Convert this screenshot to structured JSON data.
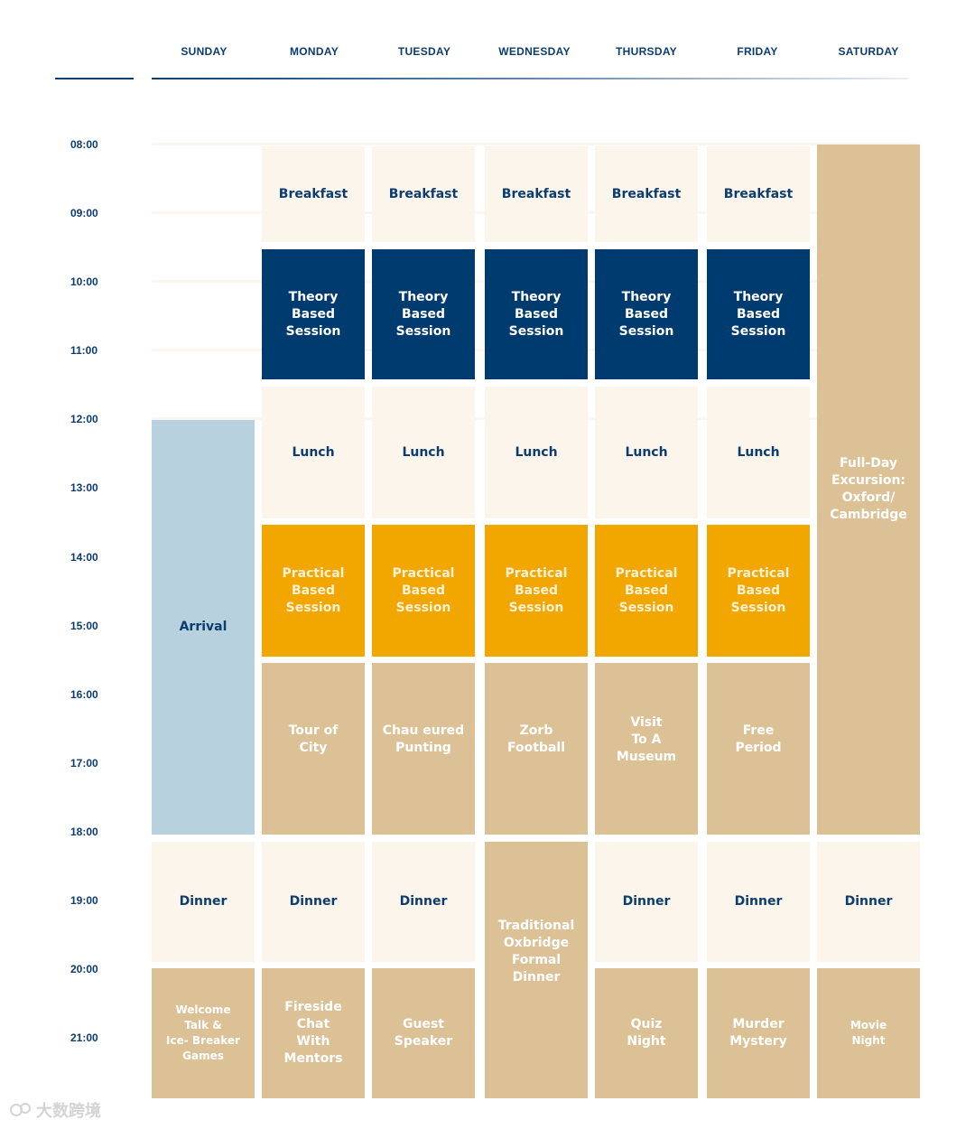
{
  "days": [
    "SUNDAY",
    "MONDAY",
    "TUESDAY",
    "WEDNESDAY",
    "THURSDAY",
    "FRIDAY",
    "SATURDAY"
  ],
  "times": [
    "08:00",
    "09:00",
    "10:00",
    "11:00",
    "12:00",
    "13:00",
    "14:00",
    "15:00",
    "16:00",
    "17:00",
    "18:00",
    "19:00",
    "20:00",
    "21:00"
  ],
  "events": {
    "arrival": "Arrival",
    "breakfast": "Breakfast",
    "theory": "Theory\nBased\nSession",
    "lunch": "Lunch",
    "practical": "Practical\nBased\nSession",
    "dinner": "Dinner",
    "excursion": "Full-Day\nExcursion:\nOxford/\nCambridge",
    "tour_of_city": "Tour of\nCity",
    "punting": "Chau eured\nPunting",
    "zorb": "Zorb\nFootball",
    "museum": "Visit\nTo A\nMuseum",
    "free_period": "Free\nPeriod",
    "formal_dinner": "Traditional\nOxbridge\nFormal\nDinner",
    "welcome": "Welcome\nTalk &\nIce- Breaker\nGames",
    "fireside": "Fireside\nChat\nWith\nMentors",
    "guest_speaker": "Guest\nSpeaker",
    "quiz": "Quiz\nNight",
    "murder_mystery": "Murder\nMystery",
    "movie": "Movie\nNight"
  },
  "watermark": "大数跨境",
  "colors": {
    "navy": "#003b70",
    "orange": "#f2a600",
    "tan": "#dcc196",
    "cream": "#fbf5ec",
    "light_blue": "#b7d1de",
    "text_blue": "#0c3d6e"
  }
}
